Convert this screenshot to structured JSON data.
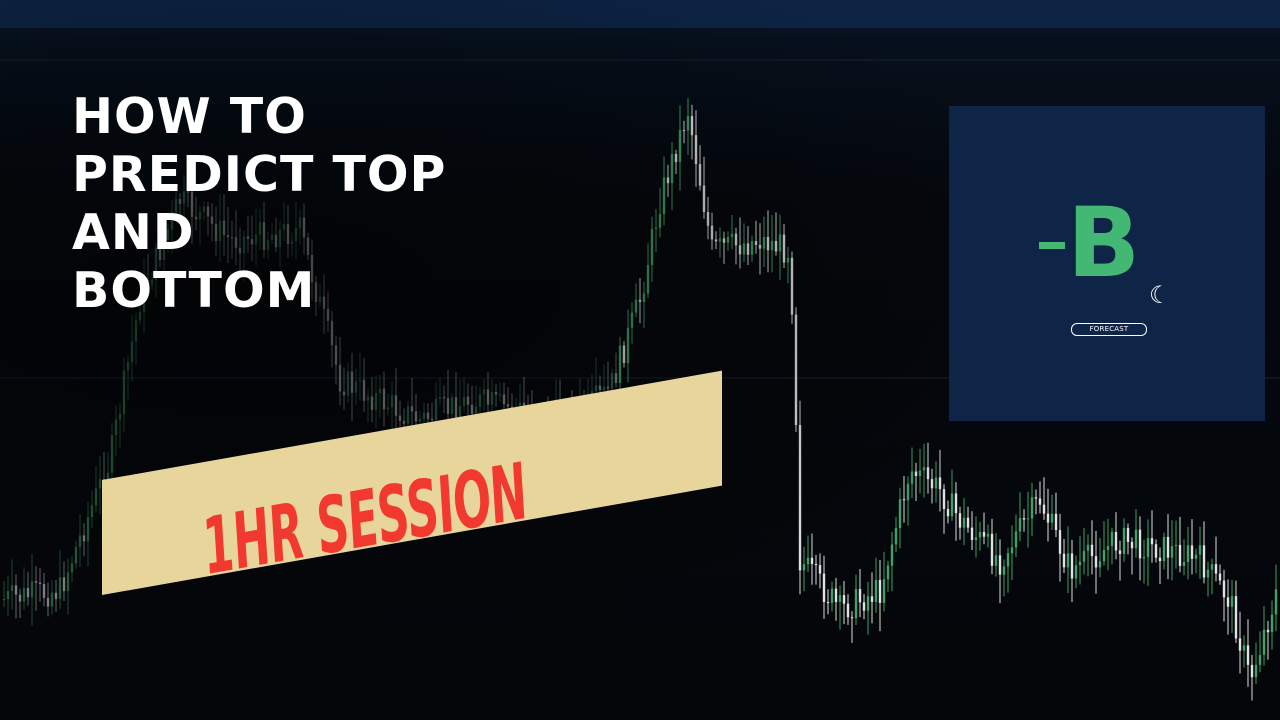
{
  "title": {
    "lines": [
      "HOW TO",
      "PREDICT TOP",
      "AND",
      "BOTTOM"
    ]
  },
  "banner": {
    "text": "1HR SESSION",
    "background": "#e8d59c",
    "text_color": "#f2392f"
  },
  "logo": {
    "symbol": "B",
    "tag": "FORECAST",
    "icons": [
      "bitcoin-icon",
      "moon-icon"
    ],
    "background": "#0e2547",
    "accent": "#43b875"
  },
  "chart": {
    "up_color": "#3fa86a",
    "down_color": "#e8e8e8",
    "grid_color": "#1a2230"
  }
}
